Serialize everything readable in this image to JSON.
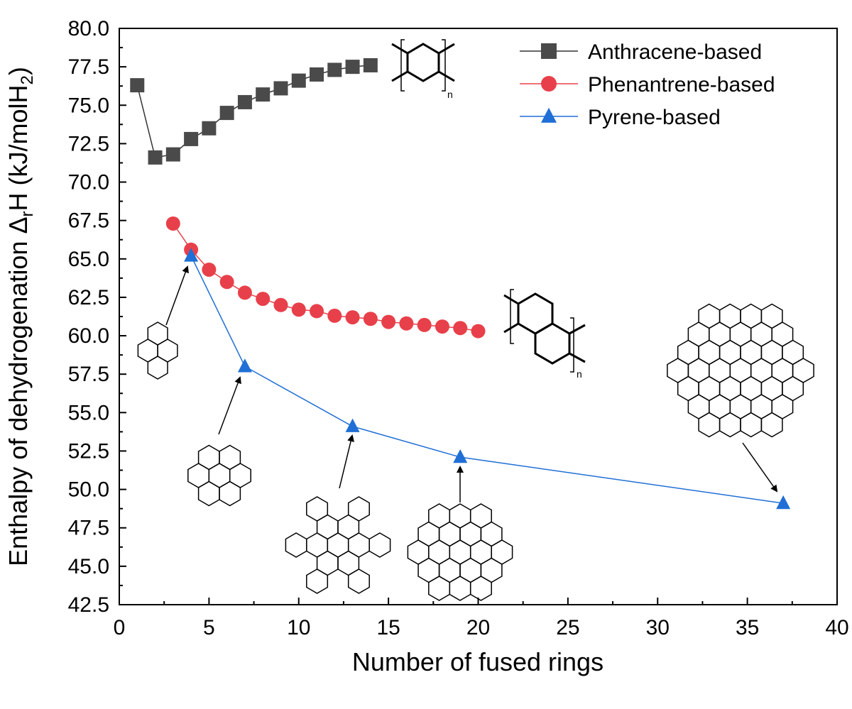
{
  "chart_data": {
    "type": "line",
    "xlabel": "Number of fused rings",
    "ylabel": {
      "before_sub": "Enthalpy of dehydrogenation Δ",
      "sub1": "r",
      "middle": "H (kJ/molH",
      "sub2": "2",
      "after": ")"
    },
    "xlim": [
      0,
      40
    ],
    "ylim": [
      42.5,
      80.0
    ],
    "xticks": [
      0,
      5,
      10,
      15,
      20,
      25,
      30,
      35,
      40
    ],
    "xtick_labels": [
      "0",
      "5",
      "10",
      "15",
      "20",
      "25",
      "30",
      "35",
      "40"
    ],
    "yticks": [
      42.5,
      45.0,
      47.5,
      50.0,
      52.5,
      55.0,
      57.5,
      60.0,
      62.5,
      65.0,
      67.5,
      70.0,
      72.5,
      75.0,
      77.5,
      80.0
    ],
    "ytick_labels": [
      "42.5",
      "45.0",
      "47.5",
      "50.0",
      "52.5",
      "55.0",
      "57.5",
      "60.0",
      "62.5",
      "65.0",
      "67.5",
      "70.0",
      "72.5",
      "75.0",
      "77.5",
      "80.0"
    ],
    "grid": false,
    "legend_position": "top-right",
    "series": [
      {
        "name": "Anthracene-based",
        "marker": "square",
        "color": "#4a4a4a",
        "line_color": "#333333",
        "x": [
          1,
          2,
          3,
          4,
          5,
          6,
          7,
          8,
          9,
          10,
          11,
          12,
          13,
          14
        ],
        "y": [
          76.3,
          71.6,
          71.8,
          72.8,
          73.5,
          74.5,
          75.2,
          75.7,
          76.1,
          76.6,
          77.0,
          77.3,
          77.5,
          77.6
        ]
      },
      {
        "name": "Phenantrene-based",
        "marker": "circle",
        "color": "#e8404a",
        "line_color": "#e8404a",
        "x": [
          3,
          4,
          5,
          6,
          7,
          8,
          9,
          10,
          11,
          12,
          13,
          14,
          15,
          16,
          17,
          18,
          19,
          20
        ],
        "y": [
          67.3,
          65.6,
          64.3,
          63.5,
          62.8,
          62.4,
          62.0,
          61.7,
          61.6,
          61.3,
          61.2,
          61.1,
          60.9,
          60.8,
          60.7,
          60.6,
          60.5,
          60.3
        ]
      },
      {
        "name": "Pyrene-based",
        "marker": "triangle",
        "color": "#1f6fd6",
        "line_color": "#1f6fd6",
        "x": [
          4,
          7,
          13,
          19,
          37
        ],
        "y": [
          65.2,
          58.0,
          54.1,
          52.1,
          49.1
        ]
      }
    ],
    "annotations": {
      "subscript_n": "n"
    }
  }
}
